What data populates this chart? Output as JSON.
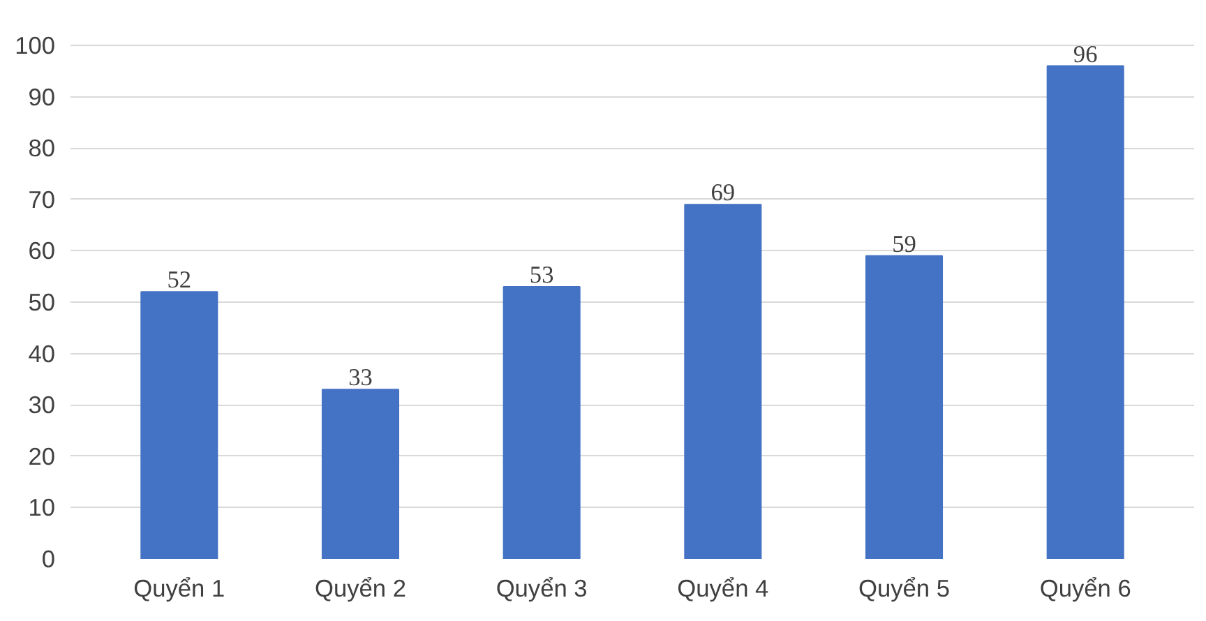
{
  "chart_data": {
    "type": "bar",
    "categories": [
      "Quyển 1",
      "Quyển 2",
      "Quyển 3",
      "Quyển 4",
      "Quyển 5",
      "Quyển 6"
    ],
    "values": [
      52,
      33,
      53,
      69,
      59,
      96
    ],
    "color": "#4472c4",
    "ylim": [
      0,
      100
    ],
    "yticks": [
      0,
      10,
      20,
      30,
      40,
      50,
      60,
      70,
      80,
      90,
      100
    ],
    "grid": "y",
    "data_labels": true
  }
}
